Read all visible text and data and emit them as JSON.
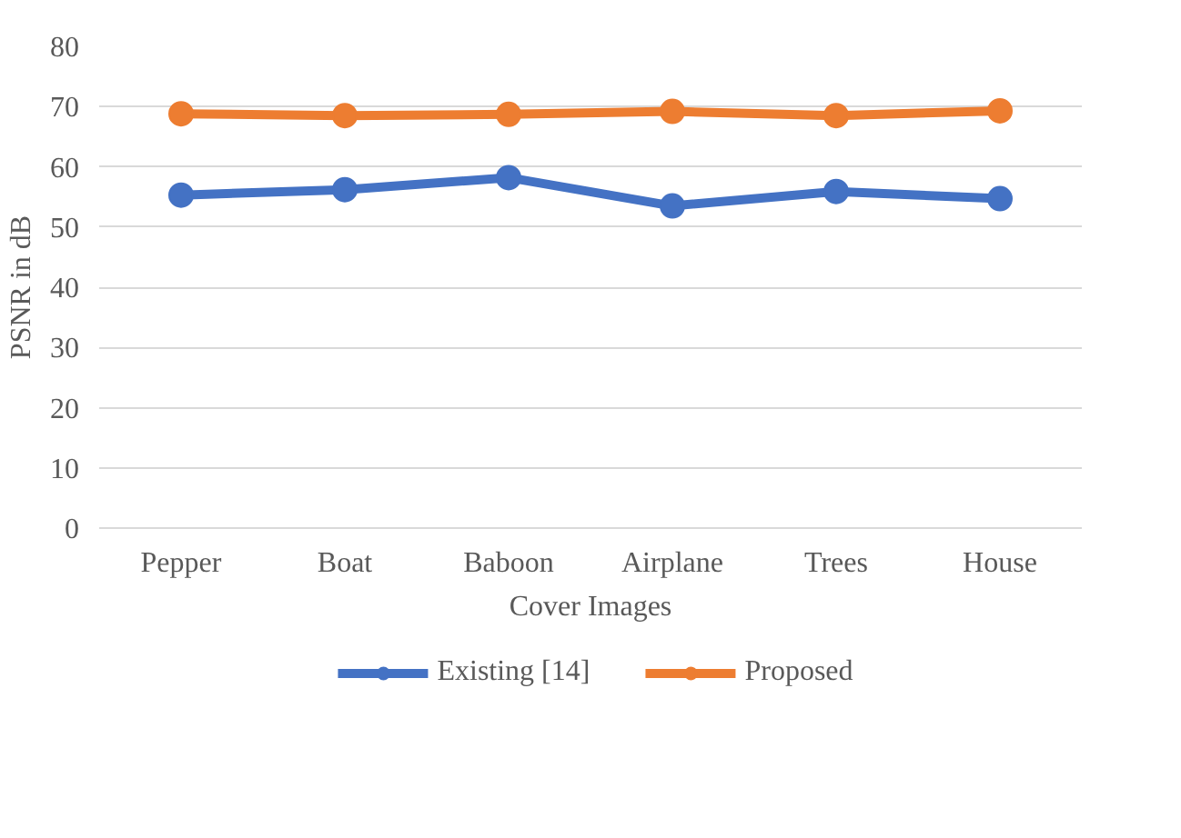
{
  "chart_data": {
    "type": "line",
    "xlabel": "Cover Images",
    "ylabel": "PSNR in dB",
    "categories": [
      "Pepper",
      "Boat",
      "Baboon",
      "Airplane",
      "Trees",
      "House"
    ],
    "series": [
      {
        "name": "Existing [14]",
        "color": "#4472c4",
        "values": [
          55.3,
          56.2,
          58.2,
          53.5,
          55.9,
          54.7
        ]
      },
      {
        "name": "Proposed",
        "color": "#ed7d31",
        "values": [
          68.8,
          68.5,
          68.7,
          69.2,
          68.5,
          69.3
        ]
      }
    ],
    "ylim": [
      0,
      80
    ],
    "yticks": [
      0,
      10,
      20,
      30,
      40,
      50,
      60,
      70,
      80
    ],
    "grid": "y",
    "legend": "bottom",
    "marker": "circle",
    "line_style": "solid"
  }
}
